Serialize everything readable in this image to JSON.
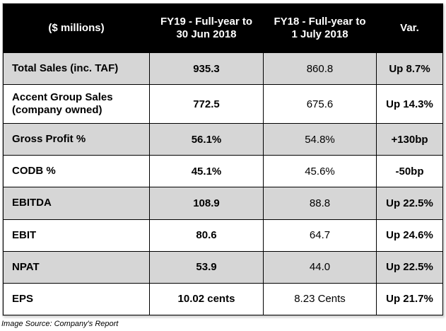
{
  "table": {
    "headers": [
      "($ millions)",
      "FY19 - Full-year to 30 Jun 2018",
      "FY18 - Full-year to 1 July 2018",
      "Var."
    ],
    "header_lines": [
      [
        "($ millions)"
      ],
      [
        "FY19 - Full-year to",
        "30 Jun 2018"
      ],
      [
        "FY18 - Full-year to",
        "1 July 2018"
      ],
      [
        "Var."
      ]
    ],
    "rows": [
      {
        "label_lines": [
          "Total Sales (inc. TAF)"
        ],
        "fy19": "935.3",
        "fy18": "860.8",
        "var": "Up 8.7%",
        "shaded": true
      },
      {
        "label_lines": [
          "Accent Group Sales",
          "(company owned)"
        ],
        "fy19": "772.5",
        "fy18": "675.6",
        "var": "Up 14.3%",
        "shaded": false
      },
      {
        "label_lines": [
          "Gross Profit %"
        ],
        "fy19": "56.1%",
        "fy18": "54.8%",
        "var": "+130bp",
        "shaded": true
      },
      {
        "label_lines": [
          "CODB %"
        ],
        "fy19": "45.1%",
        "fy18": "45.6%",
        "var": "-50bp",
        "shaded": false
      },
      {
        "label_lines": [
          "EBITDA"
        ],
        "fy19": "108.9",
        "fy18": "88.8",
        "var": "Up 22.5%",
        "shaded": true
      },
      {
        "label_lines": [
          "EBIT"
        ],
        "fy19": "80.6",
        "fy18": "64.7",
        "var": "Up 24.6%",
        "shaded": false
      },
      {
        "label_lines": [
          "NPAT"
        ],
        "fy19": "53.9",
        "fy18": "44.0",
        "var": "Up 22.5%",
        "shaded": true
      },
      {
        "label_lines": [
          "EPS"
        ],
        "fy19": "10.02 cents",
        "fy18": "8.23 Cents",
        "var": "Up 21.7%",
        "shaded": false
      }
    ]
  },
  "caption": "Image Source: Company's Report",
  "colors": {
    "header_bg": "#000000",
    "header_text": "#ffffff",
    "shade": "#d6d6d6",
    "border": "#000000"
  }
}
